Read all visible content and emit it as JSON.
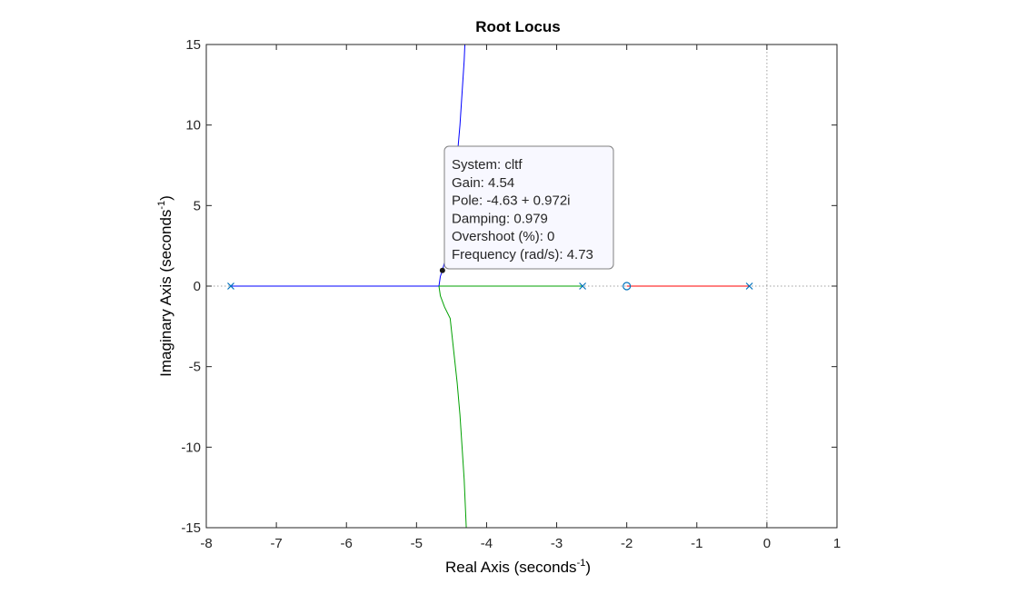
{
  "chart_data": {
    "type": "line",
    "title": "Root Locus",
    "xlabel": {
      "text": "Real Axis (seconds",
      "sup": "-1",
      "close": ")"
    },
    "ylabel": {
      "text": "Imaginary Axis (seconds",
      "sup": "-1",
      "close": ")"
    },
    "xlim": [
      -8,
      1
    ],
    "ylim": [
      -15,
      15
    ],
    "xticks": [
      -8,
      -7,
      -6,
      -5,
      -4,
      -3,
      -2,
      -1,
      0,
      1
    ],
    "yticks": [
      -15,
      -10,
      -5,
      0,
      5,
      10,
      15
    ],
    "xtick_labels": [
      "-8",
      "-7",
      "-6",
      "-5",
      "-4",
      "-3",
      "-2",
      "-1",
      "0",
      "1"
    ],
    "ytick_labels": [
      "-15",
      "-10",
      "-5",
      "0",
      "5",
      "10",
      "15"
    ],
    "grid": false,
    "poles": [
      {
        "x": -7.65,
        "y": 0
      },
      {
        "x": -2.63,
        "y": 0
      },
      {
        "x": -0.25,
        "y": 0
      }
    ],
    "zeros": [
      {
        "x": -2.0,
        "y": 0
      }
    ],
    "series": [
      {
        "color": "#0000ff",
        "branches": [
          [
            [
              -7.65,
              0
            ],
            [
              -4.68,
              0
            ]
          ],
          [
            [
              -4.68,
              0
            ],
            [
              -4.66,
              0.6
            ],
            [
              -4.63,
              0.972
            ],
            [
              -4.57,
              2
            ],
            [
              -4.51,
              4
            ],
            [
              -4.47,
              6
            ],
            [
              -4.42,
              8
            ],
            [
              -4.38,
              10
            ],
            [
              -4.35,
              12
            ],
            [
              -4.32,
              14
            ],
            [
              -4.31,
              15
            ]
          ]
        ]
      },
      {
        "color": "#00a000",
        "branches": [
          [
            [
              -2.63,
              0
            ],
            [
              -4.68,
              0
            ]
          ],
          [
            [
              -4.68,
              0
            ],
            [
              -4.66,
              -0.6
            ],
            [
              -4.6,
              -1.3
            ],
            [
              -4.52,
              -2
            ],
            [
              -4.47,
              -4
            ],
            [
              -4.42,
              -6
            ],
            [
              -4.38,
              -8
            ],
            [
              -4.35,
              -10
            ],
            [
              -4.32,
              -12
            ],
            [
              -4.3,
              -14
            ],
            [
              -4.29,
              -15
            ]
          ]
        ]
      },
      {
        "color": "#ff0000",
        "branches": [
          [
            [
              -0.25,
              0
            ],
            [
              -2.0,
              0
            ]
          ]
        ]
      }
    ],
    "datatip": {
      "point": {
        "x": -4.63,
        "y": 0.972
      },
      "lines": [
        "System: cltf",
        "Gain: 4.54",
        "Pole: -4.63 + 0.972i",
        "Damping: 0.979",
        "Overshoot (%): 0",
        "Frequency (rad/s): 4.73"
      ]
    },
    "colors": {
      "marker": "#0072bd",
      "axes": "#262626",
      "reference": "#a0a0a0",
      "datatip_bg": "#f8f8ff",
      "datatip_border": "#808080"
    }
  }
}
